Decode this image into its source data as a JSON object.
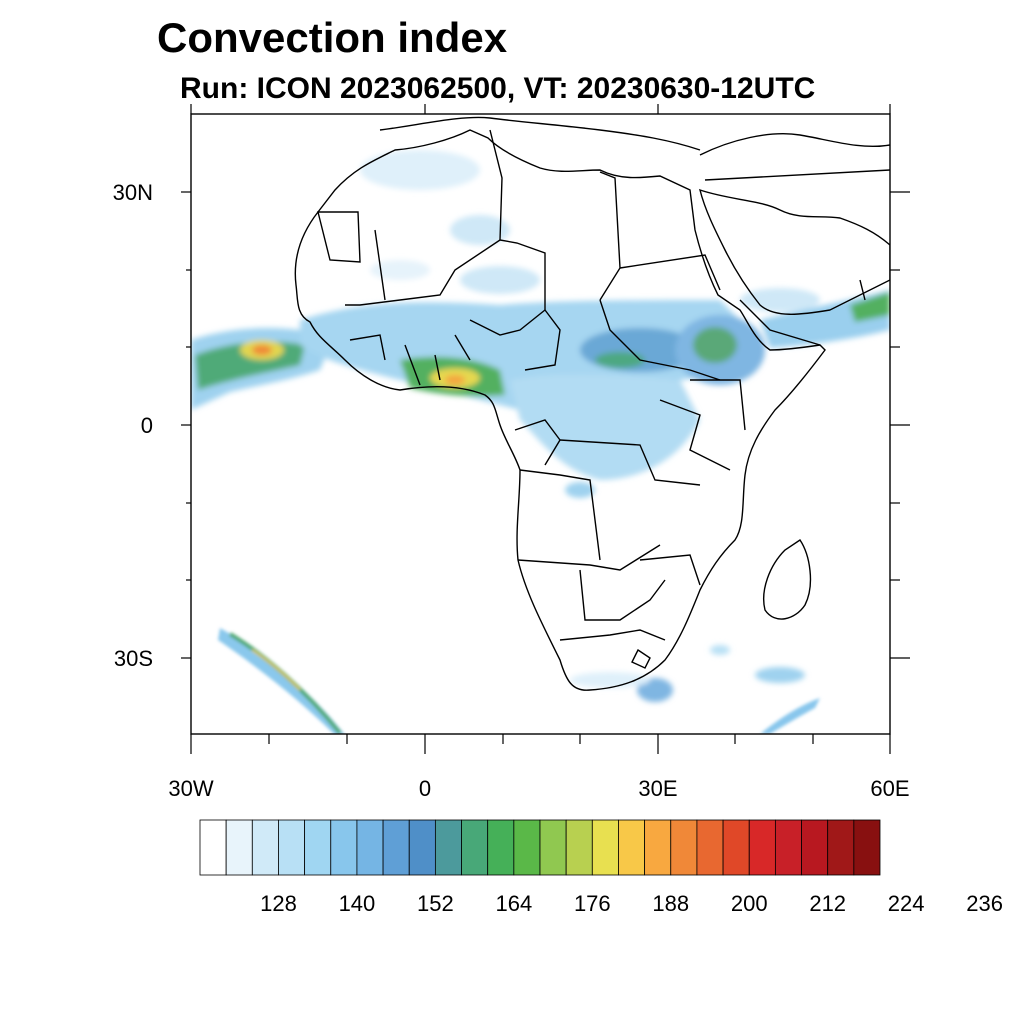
{
  "title": "Convection index",
  "subtitle": "Run: ICON 2023062500,  VT: 20230630-12UTC",
  "map": {
    "region": "Africa",
    "lon_range": [
      -30,
      60
    ],
    "lat_range": [
      -40,
      40
    ],
    "lat_ticks": [
      "30N",
      "0",
      "30S"
    ],
    "lon_ticks": [
      "30W",
      "0",
      "30E",
      "60E"
    ]
  },
  "colorbar": {
    "labels": [
      "128",
      "140",
      "152",
      "164",
      "176",
      "188",
      "200",
      "212",
      "224",
      "236"
    ],
    "colors": [
      "#ffffff",
      "#e8f4fb",
      "#d0eaf8",
      "#b8e0f5",
      "#a0d6f2",
      "#88c6ec",
      "#75b5e4",
      "#5f9fd6",
      "#4f8fc8",
      "#4c9a9c",
      "#48a878",
      "#45b058",
      "#5ab848",
      "#90c850",
      "#b8d050",
      "#e8e050",
      "#f8c848",
      "#f8a840",
      "#f08838",
      "#e86830",
      "#e04828",
      "#d82828",
      "#c82028",
      "#b81820",
      "#a01818",
      "#881010"
    ]
  },
  "chart_data": {
    "type": "heatmap",
    "title": "Convection index",
    "subtitle": "Run: ICON 2023062500,  VT: 20230630-12UTC",
    "xlabel": "",
    "ylabel": "",
    "xlim": [
      -30,
      60
    ],
    "ylim": [
      -40,
      40
    ],
    "xticks": [
      "30W",
      "0",
      "30E",
      "60E"
    ],
    "yticks": [
      "30N",
      "0",
      "30S"
    ],
    "color_levels": [
      128,
      140,
      152,
      164,
      176,
      188,
      200,
      212,
      224,
      236
    ]
  }
}
